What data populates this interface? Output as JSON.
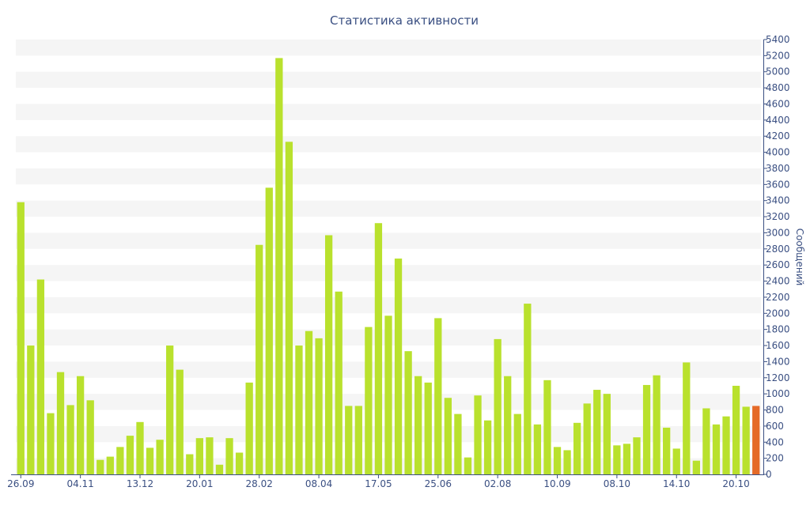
{
  "chart_data": {
    "type": "bar",
    "title": "Статистика активности",
    "xlabel": "",
    "ylabel": "Сообщений",
    "ylim": [
      0,
      5400
    ],
    "ytick_step": 200,
    "y_axis_side": "right",
    "grid": "alternating horizontal bands",
    "x_tick_labels": [
      {
        "index": 0,
        "label": "26.09"
      },
      {
        "index": 6,
        "label": "04.11"
      },
      {
        "index": 12,
        "label": "13.12"
      },
      {
        "index": 18,
        "label": "20.01"
      },
      {
        "index": 24,
        "label": "28.02"
      },
      {
        "index": 30,
        "label": "08.04"
      },
      {
        "index": 36,
        "label": "17.05"
      },
      {
        "index": 42,
        "label": "25.06"
      },
      {
        "index": 48,
        "label": "02.08"
      },
      {
        "index": 54,
        "label": "10.09"
      },
      {
        "index": 60,
        "label": "08.10"
      },
      {
        "index": 66,
        "label": "14.10"
      },
      {
        "index": 72,
        "label": "20.10"
      }
    ],
    "values": [
      3380,
      1600,
      2420,
      760,
      1270,
      860,
      1220,
      920,
      180,
      220,
      340,
      480,
      650,
      330,
      430,
      1600,
      1300,
      250,
      450,
      460,
      120,
      450,
      270,
      1140,
      2850,
      3560,
      5170,
      4130,
      1600,
      1780,
      1690,
      2970,
      2270,
      850,
      850,
      1830,
      3120,
      1970,
      2680,
      1530,
      1220,
      1140,
      1940,
      950,
      750,
      210,
      980,
      670,
      1680,
      1220,
      750,
      2120,
      620,
      1170,
      340,
      300,
      640,
      880,
      1050,
      1000,
      360,
      380,
      460,
      1110,
      1230,
      580,
      320,
      1390,
      170,
      820,
      620,
      720,
      1100,
      840,
      850
    ],
    "highlight_index": 74,
    "colors": {
      "bar": "#b9e12d",
      "bar_highlight": "#e56a28",
      "text": "#3a4f82",
      "band": "#f5f5f5",
      "axis": "#3a4f82"
    }
  }
}
